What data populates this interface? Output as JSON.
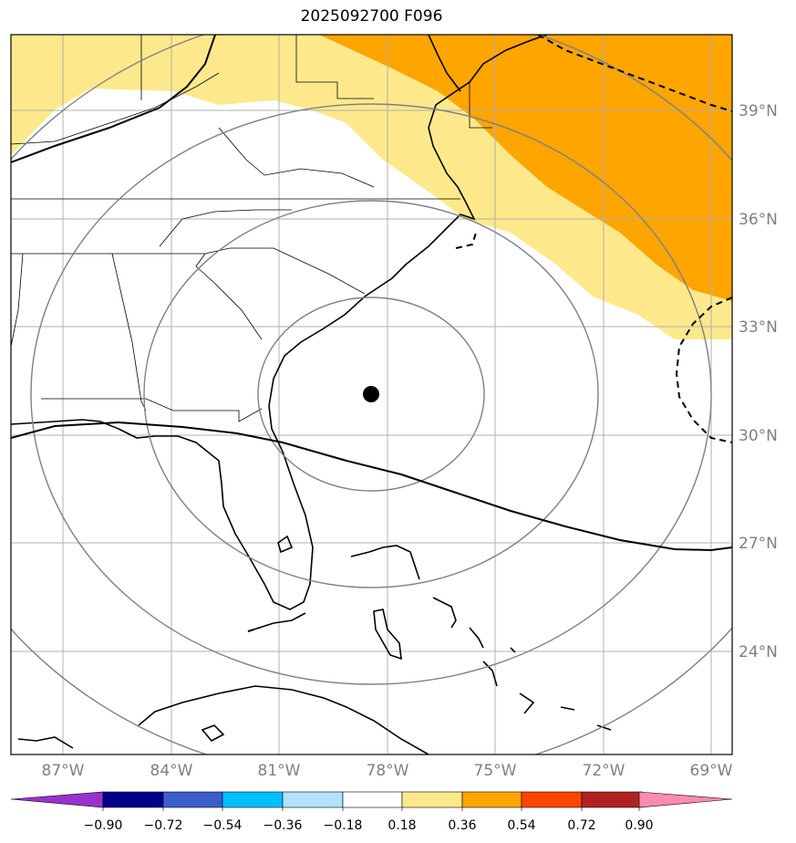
{
  "title": "2025092700 F096",
  "map": {
    "lat_labels": [
      "39°N",
      "36°N",
      "33°N",
      "30°N",
      "27°N",
      "24°N"
    ],
    "lon_labels": [
      "87°W",
      "84°W",
      "81°W",
      "78°W",
      "75°W",
      "72°W",
      "69°W"
    ],
    "storm_center_marker": "black dot",
    "range_rings": 4,
    "colors": {
      "light_yellow": "#fde98c",
      "orange": "#fea500",
      "coast": "#000000",
      "grid": "#b0b0b0",
      "rings": "#808080"
    }
  },
  "colorbar": {
    "ticks": [
      "−0.90",
      "−0.72",
      "−0.54",
      "−0.36",
      "−0.18",
      "0.18",
      "0.36",
      "0.54",
      "0.72",
      "0.90"
    ],
    "colors": [
      "#9932cc",
      "#00008b",
      "#3a5fcd",
      "#00bfff",
      "#b0e2ff",
      "#ffffff",
      "#fde98c",
      "#fea500",
      "#ff4500",
      "#b22222",
      "#ff8ab0"
    ]
  }
}
